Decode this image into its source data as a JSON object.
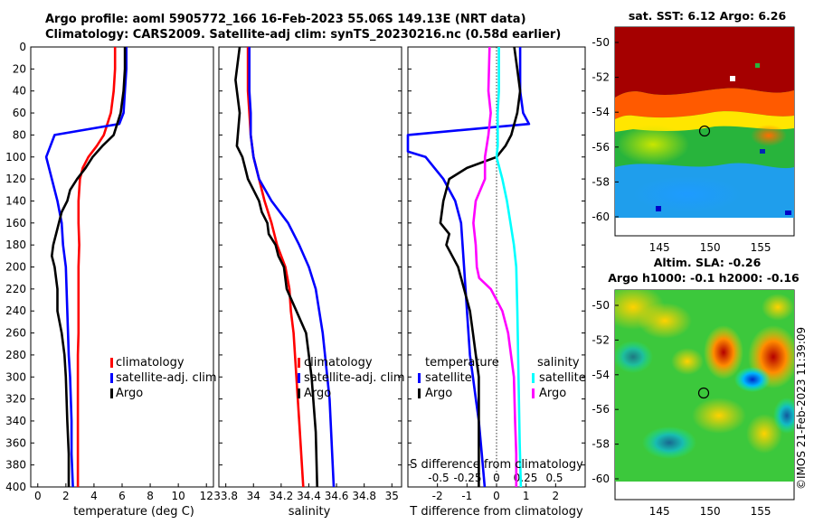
{
  "header": {
    "line1": "Argo profile: aoml 5905772_166 16-Feb-2023 55.06S 149.13E (NRT data)",
    "line2": "Climatology: CARS2009. Satellite-adj clim: synTS_20230216.nc (0.58d earlier)"
  },
  "maps": {
    "sst_title": "sat. SST: 6.12 Argo: 6.26",
    "sla_title1": "Altim. SLA: -0.26",
    "sla_title2": "Argo h1000: -0.1 h2000: -0.16",
    "lat_ticks": [
      "-50",
      "-52",
      "-54",
      "-56",
      "-58",
      "-60"
    ],
    "lon_ticks": [
      "145",
      "150",
      "155"
    ],
    "marker": {
      "lon": 149.13,
      "lat": -55.06
    }
  },
  "stamp": "©IMOS 21-Feb-2023 11:39:09",
  "colors": {
    "climatology": "#ff0000",
    "satellite": "#0000ff",
    "argo": "#000000",
    "sat_salinity": "#00ffff",
    "argo_salinity": "#ff00ff"
  },
  "chart_data": [
    {
      "type": "line",
      "title": "",
      "xlabel": "temperature (deg C)",
      "ylabel": "depth",
      "xlim": [
        -0.5,
        12.5
      ],
      "ylim": [
        400,
        0
      ],
      "xticks": [
        "0",
        "2",
        "4",
        "6",
        "8",
        "10",
        "12"
      ],
      "yticks": [
        "0",
        "20",
        "40",
        "60",
        "80",
        "100",
        "120",
        "140",
        "160",
        "180",
        "200",
        "220",
        "240",
        "260",
        "280",
        "300",
        "320",
        "340",
        "360",
        "380",
        "400"
      ],
      "legend": [
        "climatology",
        "satellite-adj. clim",
        "Argo"
      ],
      "legend_position": "right-middle",
      "series": [
        {
          "name": "climatology",
          "color": "#ff0000",
          "x": [
            5.5,
            5.5,
            5.4,
            5.2,
            4.7,
            4.2,
            3.6,
            3.2,
            3.0,
            2.9,
            2.9,
            2.95,
            2.9,
            2.9,
            2.9,
            2.9,
            2.85,
            2.85,
            2.85,
            2.85,
            2.85
          ],
          "y": [
            0,
            20,
            40,
            60,
            80,
            90,
            100,
            110,
            120,
            140,
            160,
            180,
            200,
            220,
            240,
            260,
            280,
            300,
            320,
            360,
            400
          ]
        },
        {
          "name": "satellite-adj. clim",
          "color": "#0000ff",
          "x": [
            6.3,
            6.3,
            6.2,
            6.1,
            5.8,
            1.2,
            0.6,
            1.0,
            1.4,
            1.7,
            1.8,
            2.0,
            2.1,
            2.2,
            2.3,
            2.4,
            2.4,
            2.5
          ],
          "y": [
            0,
            20,
            40,
            60,
            70,
            80,
            100,
            120,
            140,
            160,
            180,
            200,
            240,
            280,
            300,
            340,
            370,
            400
          ]
        },
        {
          "name": "Argo",
          "color": "#000000",
          "x": [
            6.2,
            6.2,
            6.1,
            5.9,
            5.4,
            4.6,
            3.9,
            3.4,
            2.8,
            2.3,
            2.1,
            1.7,
            1.5,
            1.3,
            1.1,
            1.0,
            1.2,
            1.4,
            1.4,
            1.7,
            1.9,
            2.0,
            2.1,
            2.2,
            2.2
          ],
          "y": [
            0,
            20,
            40,
            60,
            80,
            90,
            100,
            110,
            120,
            130,
            140,
            150,
            160,
            170,
            180,
            190,
            200,
            220,
            240,
            260,
            280,
            300,
            340,
            370,
            400
          ]
        }
      ]
    },
    {
      "type": "line",
      "title": "",
      "xlabel": "salinity",
      "ylabel": "",
      "xlim": [
        33.75,
        35.07
      ],
      "ylim": [
        400,
        0
      ],
      "xticks": [
        "33.8",
        "34",
        "34.2",
        "34.4",
        "34.6",
        "34.8",
        "35"
      ],
      "legend": [
        "climatology",
        "satellite-adj. clim",
        "Argo"
      ],
      "legend_position": "right-middle",
      "series": [
        {
          "name": "climatology",
          "color": "#ff0000",
          "x": [
            33.96,
            33.96,
            33.97,
            33.98,
            34.0,
            34.04,
            34.08,
            34.13,
            34.17,
            34.23,
            34.26,
            34.27,
            34.29,
            34.31,
            34.33,
            34.36
          ],
          "y": [
            0,
            40,
            60,
            80,
            100,
            120,
            140,
            160,
            180,
            200,
            220,
            240,
            260,
            300,
            340,
            400
          ]
        },
        {
          "name": "satellite-adj. clim",
          "color": "#0000ff",
          "x": [
            33.97,
            33.97,
            33.98,
            33.98,
            34.0,
            34.04,
            34.13,
            34.25,
            34.33,
            34.4,
            34.45,
            34.5,
            34.55,
            34.58
          ],
          "y": [
            0,
            40,
            60,
            80,
            100,
            120,
            140,
            160,
            180,
            200,
            220,
            260,
            320,
            400
          ]
        },
        {
          "name": "Argo",
          "color": "#000000",
          "x": [
            33.9,
            33.87,
            33.9,
            33.88,
            33.92,
            33.94,
            33.96,
            34.0,
            34.04,
            34.06,
            34.1,
            34.11,
            34.16,
            34.18,
            34.22,
            34.24,
            34.31,
            34.38,
            34.42,
            34.45,
            34.46
          ],
          "y": [
            0,
            30,
            60,
            90,
            100,
            110,
            120,
            130,
            140,
            150,
            160,
            170,
            180,
            190,
            200,
            220,
            240,
            260,
            300,
            350,
            400
          ]
        }
      ]
    },
    {
      "type": "line",
      "title": "",
      "xlabel": "T difference from climatology",
      "xlabel_top": "S difference from climatology",
      "xlim": [
        -3,
        3.0
      ],
      "ylim": [
        400,
        0
      ],
      "xticks": [
        "-2",
        "-1",
        "0",
        "1",
        "2"
      ],
      "xticks_top": [
        "-0.5",
        "-0.25",
        "0",
        "0.25",
        "0.5"
      ],
      "legend_temperature_title": "temperature",
      "legend_salinity_title": "salinity",
      "legend_temperature": [
        "satellite",
        "Argo"
      ],
      "legend_salinity": [
        "satellite",
        "Argo"
      ],
      "series": [
        {
          "name": "T satellite",
          "color": "#0000ff",
          "x": [
            0.8,
            0.8,
            0.8,
            0.9,
            1.1,
            -3.0,
            -3.0,
            -2.4,
            -1.8,
            -1.4,
            -1.2,
            -1.1,
            -1.0,
            -0.9,
            -0.8,
            -0.7,
            -0.6,
            -0.5,
            -0.4
          ],
          "y": [
            0,
            20,
            40,
            60,
            70,
            80,
            95,
            100,
            120,
            140,
            160,
            200,
            240,
            280,
            300,
            320,
            340,
            370,
            400
          ]
        },
        {
          "name": "T Argo",
          "color": "#000000",
          "x": [
            0.6,
            0.7,
            0.8,
            0.7,
            0.5,
            0.3,
            0.0,
            -1.0,
            -1.6,
            -1.8,
            -1.9,
            -1.6,
            -1.7,
            -1.5,
            -1.3,
            -1.1,
            -0.9,
            -0.8,
            -0.7,
            -0.6,
            -0.6,
            -0.6
          ],
          "y": [
            0,
            20,
            40,
            60,
            80,
            90,
            100,
            110,
            120,
            140,
            160,
            170,
            180,
            190,
            200,
            220,
            240,
            260,
            280,
            300,
            340,
            400
          ]
        },
        {
          "name": "S satellite",
          "color": "#00ffff",
          "x": [
            0.02,
            0.02,
            0.01,
            0.01,
            0.01,
            0.0,
            0.05,
            0.09,
            0.12,
            0.15,
            0.17,
            0.18,
            0.19,
            0.2,
            0.21
          ],
          "y": [
            0,
            40,
            60,
            80,
            90,
            100,
            120,
            140,
            160,
            180,
            200,
            240,
            300,
            360,
            400
          ]
        },
        {
          "name": "S Argo",
          "color": "#ff00ff",
          "x": [
            -0.06,
            -0.07,
            -0.05,
            -0.07,
            -0.1,
            -0.1,
            -0.18,
            -0.2,
            -0.18,
            -0.17,
            -0.15,
            -0.05,
            0.0,
            0.05,
            0.1,
            0.15,
            0.16,
            0.17,
            0.17
          ],
          "y": [
            0,
            40,
            60,
            80,
            100,
            120,
            140,
            160,
            180,
            200,
            210,
            220,
            230,
            240,
            260,
            300,
            340,
            370,
            400
          ]
        }
      ]
    }
  ]
}
